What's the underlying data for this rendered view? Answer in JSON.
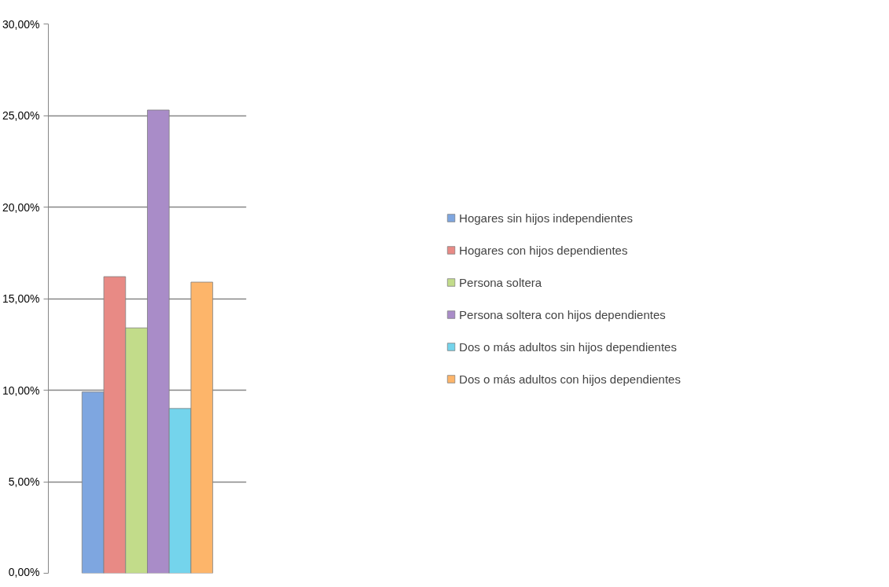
{
  "chart_data": {
    "type": "bar",
    "categories": [
      null
    ],
    "series": [
      {
        "name": "Hogares sin hijos independientes",
        "color": "#7ea6e0",
        "values": [
          9.9
        ]
      },
      {
        "name": "Hogares con hijos dependientes",
        "color": "#e88a85",
        "values": [
          16.2
        ]
      },
      {
        "name": "Persona soltera",
        "color": "#c2dc8a",
        "values": [
          13.4
        ]
      },
      {
        "name": "Persona soltera con hijos dependientes",
        "color": "#a98cc8",
        "values": [
          25.3
        ]
      },
      {
        "name": "Dos o más adultos sin hijos dependientes",
        "color": "#74d4ec",
        "values": [
          9.0
        ]
      },
      {
        "name": "Dos o más adultos con hijos dependientes",
        "color": "#fdb56a",
        "values": [
          15.9
        ]
      }
    ],
    "ylim": [
      0,
      30
    ],
    "yticks": [
      {
        "value": 0,
        "label": "0,00%"
      },
      {
        "value": 5,
        "label": "5,00%"
      },
      {
        "value": 10,
        "label": "10,00%"
      },
      {
        "value": 15,
        "label": "15,00%"
      },
      {
        "value": 20,
        "label": "20,00%"
      },
      {
        "value": 25,
        "label": "25,00%"
      },
      {
        "value": 30,
        "label": "30,00%"
      }
    ],
    "grid": "y",
    "legend": "right",
    "tick_labels": "y"
  }
}
